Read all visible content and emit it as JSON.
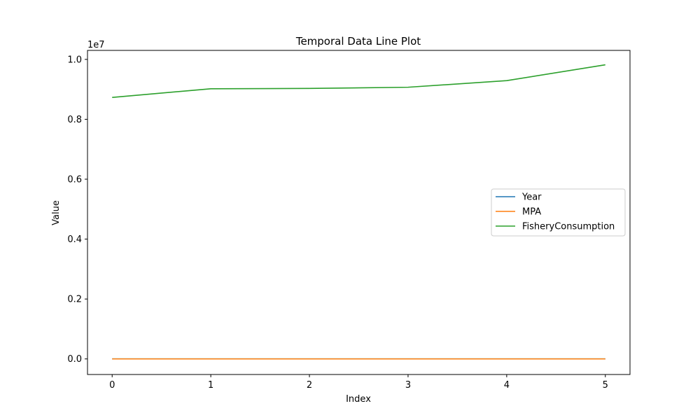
{
  "chart_data": {
    "type": "line",
    "title": "Temporal Data Line Plot",
    "xlabel": "Index",
    "ylabel": "Value",
    "y_offset_text": "1e7",
    "x": [
      0,
      1,
      2,
      3,
      4,
      5
    ],
    "xlim": [
      -0.25,
      5.25
    ],
    "ylim": [
      -520000,
      10300000
    ],
    "x_ticks": [
      0,
      1,
      2,
      3,
      4,
      5
    ],
    "x_tick_labels": [
      "0",
      "1",
      "2",
      "3",
      "4",
      "5"
    ],
    "y_ticks": [
      0,
      2000000,
      4000000,
      6000000,
      8000000,
      10000000
    ],
    "y_tick_labels": [
      "0.0",
      "0.2",
      "0.4",
      "0.6",
      "0.8",
      "1.0"
    ],
    "grid": false,
    "legend_position": "center-right",
    "series": [
      {
        "name": "Year",
        "color": "#1f77b4",
        "values": [
          2010,
          2011,
          2012,
          2013,
          2014,
          2015
        ]
      },
      {
        "name": "MPA",
        "color": "#ff7f0e",
        "values": [
          10,
          12,
          14,
          15,
          17,
          18
        ]
      },
      {
        "name": "FisheryConsumption",
        "color": "#2ca02c",
        "values": [
          8730000,
          9020000,
          9030000,
          9070000,
          9290000,
          9820000
        ]
      }
    ]
  }
}
